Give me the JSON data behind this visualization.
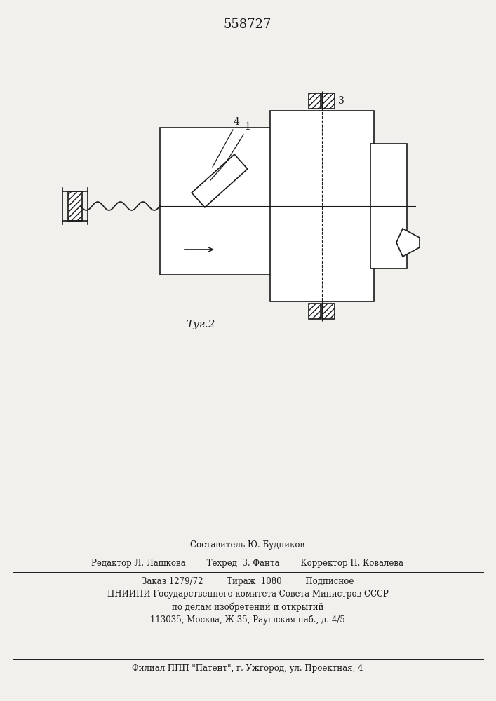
{
  "title": "558727",
  "fig_label": "Τуг.2",
  "background_color": "#f2f0ed",
  "line_color": "#1a1a1a",
  "label_3": "3",
  "label_4": "4",
  "label_1": "1"
}
